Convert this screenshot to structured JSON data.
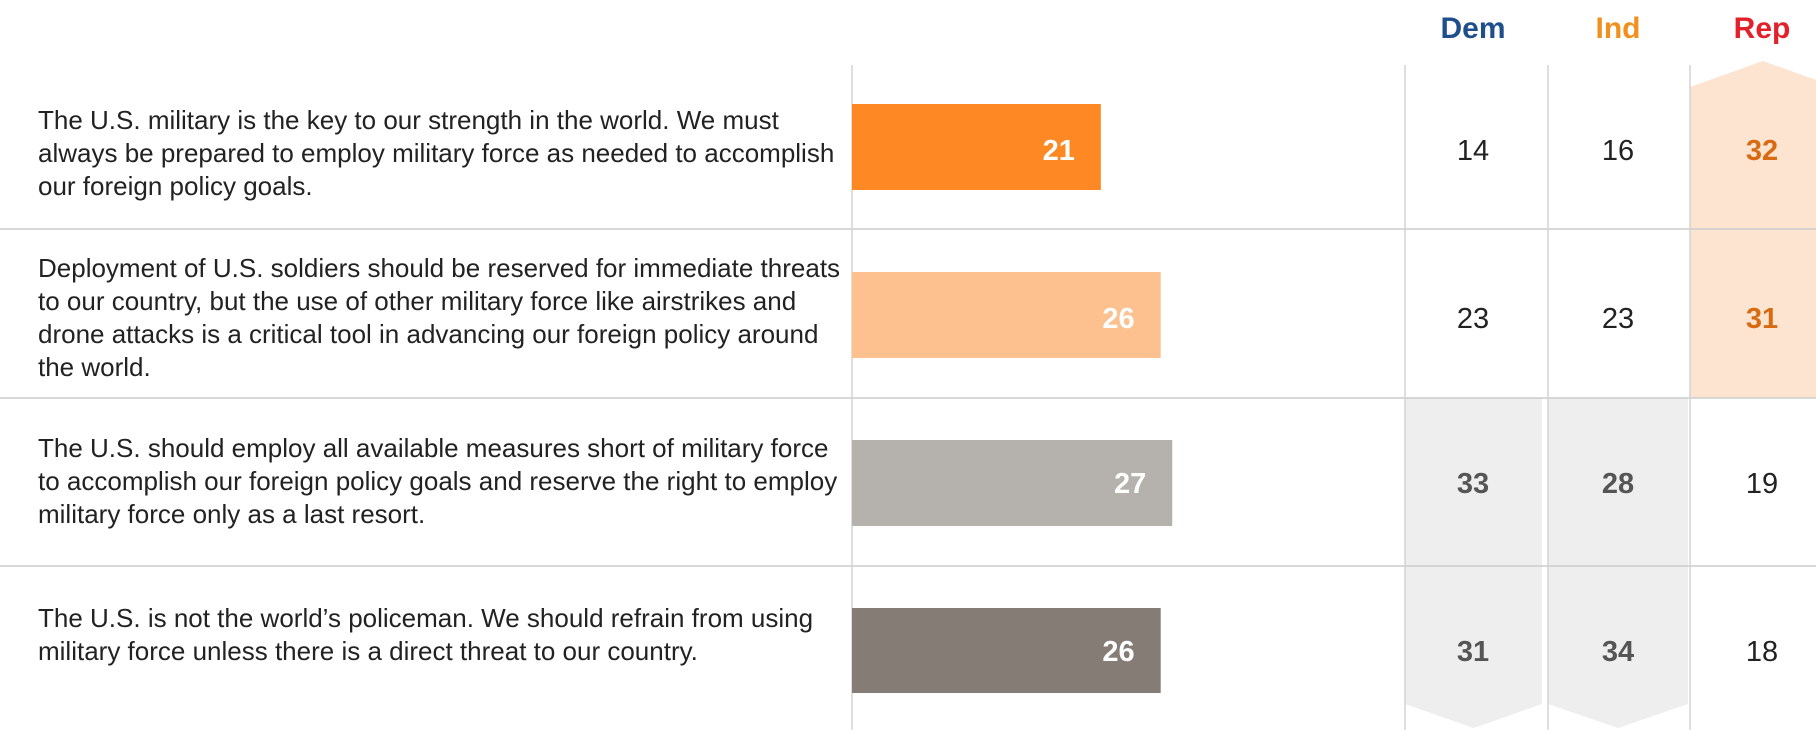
{
  "columns": [
    {
      "key": "dem",
      "label": "Dem",
      "color": "#1f4e8c"
    },
    {
      "key": "ind",
      "label": "Ind",
      "color": "#f0901e"
    },
    {
      "key": "rep",
      "label": "Rep",
      "color": "#e3212b"
    }
  ],
  "colors": {
    "rep_highlight_bg": "#fde4d0",
    "rep_highlight_text": "#d86a12",
    "dem_ind_highlight_bg": "#eeeeee",
    "dem_ind_highlight_text": "#555555",
    "bar_label": "#ffffff"
  },
  "chart_data": {
    "type": "bar",
    "orientation": "horizontal",
    "categories": [
      "The U.S. military is the key to our strength in the world.  We must always be prepared to employ military force as needed to accomplish our foreign policy goals.",
      "Deployment of U.S. soldiers should be reserved for immediate threats to our country, but the use of other military force like airstrikes and drone attacks is a critical tool in advancing our foreign policy around the world.",
      "The U.S. should employ all available measures short of military force to accomplish our foreign policy goals and reserve the right to employ military force only as a last resort.",
      "The U.S. is not the world’s policeman. We should refrain from using military force unless there is a direct threat to our country."
    ],
    "values": [
      21,
      26,
      27,
      26
    ],
    "bar_colors": [
      "#fd8824",
      "#fdc08f",
      "#b5b2ad",
      "#857c76"
    ],
    "breakdown": {
      "dem": [
        14,
        23,
        33,
        31
      ],
      "ind": [
        16,
        23,
        28,
        34
      ],
      "rep": [
        32,
        31,
        19,
        18
      ]
    },
    "highlighted": {
      "rep": [
        0,
        1
      ],
      "dem": [
        2,
        3
      ],
      "ind": [
        2,
        3
      ]
    }
  }
}
